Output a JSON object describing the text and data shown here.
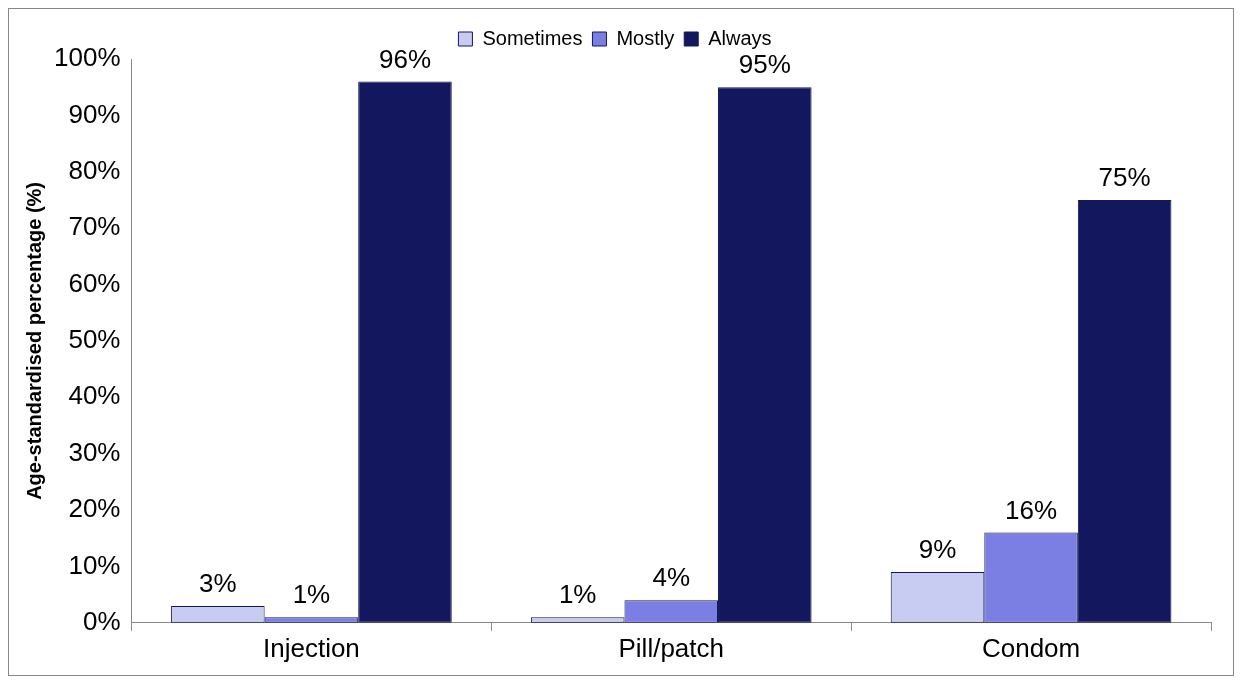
{
  "chart_data": {
    "type": "bar",
    "ylabel": "Age-standardised percentage (%)",
    "categories": [
      "Injection",
      "Pill/patch",
      "Condom"
    ],
    "series": [
      {
        "name": "Sometimes",
        "color": "#c9ccf2",
        "values": [
          3,
          1,
          9
        ],
        "value_labels": [
          "3%",
          "1%",
          "9%"
        ]
      },
      {
        "name": "Mostly",
        "color": "#7b7fe3",
        "values": [
          1,
          4,
          16
        ],
        "value_labels": [
          "1%",
          "4%",
          "16%"
        ]
      },
      {
        "name": "Always",
        "color": "#12175e",
        "values": [
          96,
          95,
          75
        ],
        "value_labels": [
          "96%",
          "95%",
          "75%"
        ]
      }
    ],
    "ylim": [
      0,
      100
    ],
    "yticks": [
      {
        "value": 0,
        "label": "0%"
      },
      {
        "value": 10,
        "label": "10%"
      },
      {
        "value": 20,
        "label": "20%"
      },
      {
        "value": 30,
        "label": "30%"
      },
      {
        "value": 40,
        "label": "40%"
      },
      {
        "value": 50,
        "label": "50%"
      },
      {
        "value": 60,
        "label": "60%"
      },
      {
        "value": 70,
        "label": "70%"
      },
      {
        "value": 80,
        "label": "80%"
      },
      {
        "value": 90,
        "label": "90%"
      },
      {
        "value": 100,
        "label": "100%"
      }
    ],
    "grid": false,
    "legend": "top"
  }
}
